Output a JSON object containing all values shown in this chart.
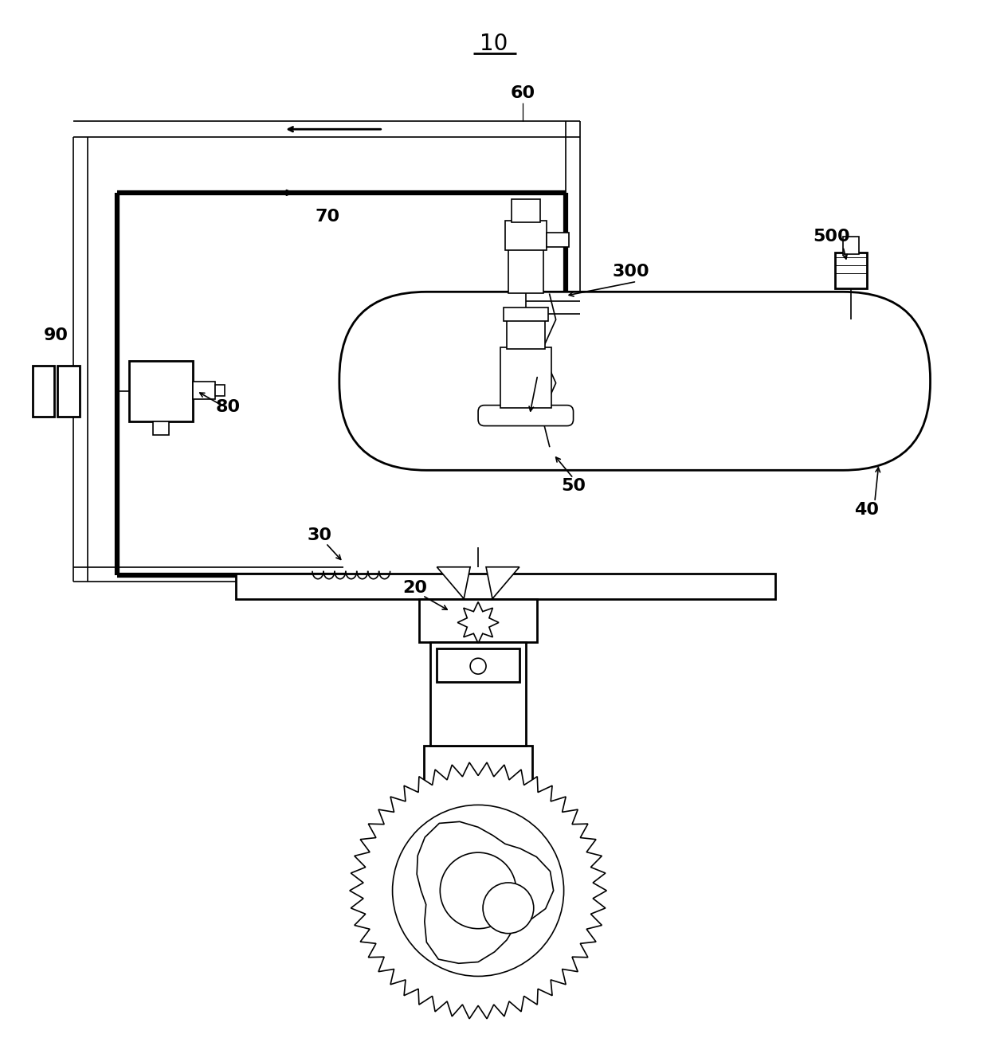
{
  "bg_color": "#ffffff",
  "figsize": [
    12.4,
    13.13
  ],
  "dpi": 100,
  "lw_thin": 1.2,
  "lw_med": 2.0,
  "lw_thick": 4.5,
  "label_fontsize": 16,
  "title_fontsize": 20
}
